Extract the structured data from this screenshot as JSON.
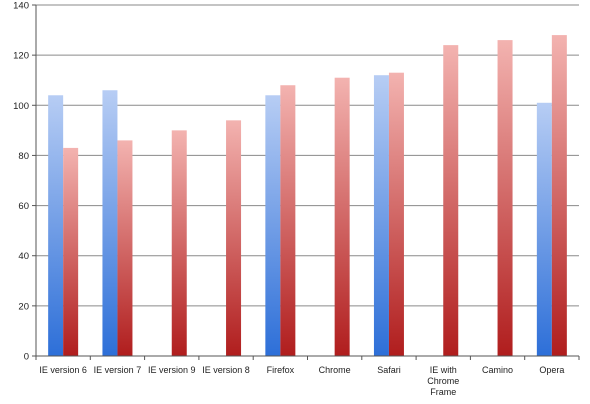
{
  "chart_data": {
    "type": "bar",
    "title": "",
    "xlabel": "",
    "ylabel": "",
    "ylim": [
      0,
      140
    ],
    "yticks": [
      0,
      20,
      40,
      60,
      80,
      100,
      120,
      140
    ],
    "grid": true,
    "categories": [
      [
        "IE version 6"
      ],
      [
        "IE version 7"
      ],
      [
        "IE version 9"
      ],
      [
        "IE version 8"
      ],
      [
        "Firefox"
      ],
      [
        "Chrome"
      ],
      [
        "Safari"
      ],
      [
        "IE with",
        "Chrome",
        "Frame"
      ],
      [
        "Camino"
      ],
      [
        "Opera"
      ]
    ],
    "series": [
      {
        "color_top": "#b7cdf4",
        "color_bottom": "#2d6fd8",
        "values": [
          104,
          106,
          null,
          null,
          104,
          null,
          112,
          null,
          null,
          101
        ]
      },
      {
        "color_top": "#f3b3b0",
        "color_bottom": "#b01d1d",
        "values": [
          83,
          86,
          90,
          94,
          108,
          111,
          113,
          124,
          126,
          128
        ]
      }
    ]
  }
}
